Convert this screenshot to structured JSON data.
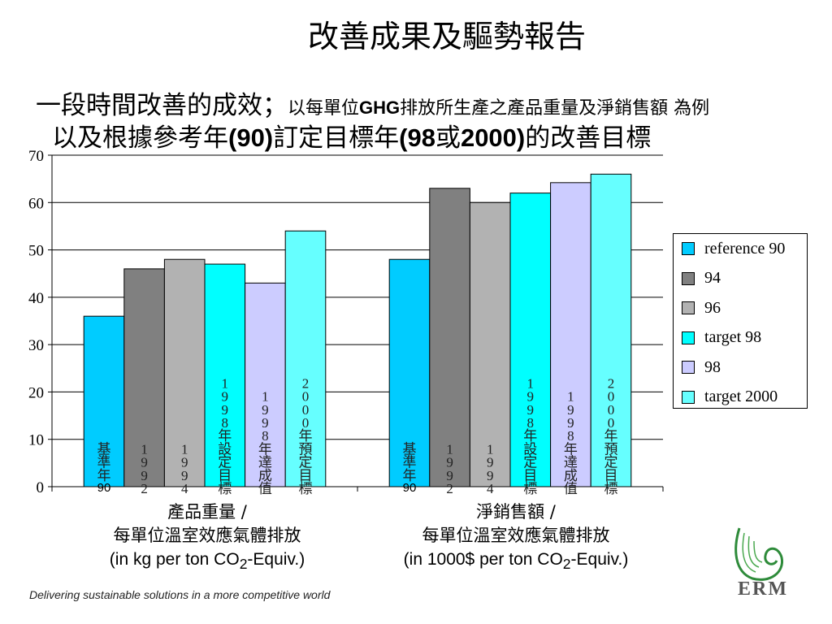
{
  "title": "改善成果及驅勢報告",
  "subtitle_line1_main": "一段時間改善的成效；",
  "subtitle_line1_small_a": "以每單位",
  "subtitle_line1_small_b": "GHG",
  "subtitle_line1_small_c": "排放所生產之產品重量及淨銷售額 為例",
  "subtitle_line2_a": "以及根據參考年",
  "subtitle_line2_b": "(90)",
  "subtitle_line2_c": "訂定目標年",
  "subtitle_line2_d": "(98",
  "subtitle_line2_e": "或",
  "subtitle_line2_f": "2000)",
  "subtitle_line2_g": "的改善目標",
  "group_labels": [
    {
      "line1": "產品重量 /",
      "line2": "每單位溫室效應氣體排放",
      "line3_pre": "(in kg per ton CO",
      "sub": "2",
      "line3_post": "-Equiv.)"
    },
    {
      "line1": "淨銷售額 /",
      "line2": "每單位溫室效應氣體排放",
      "line3_pre": "(in 1000$ per ton CO",
      "sub": "2",
      "line3_post": "-Equiv.)"
    }
  ],
  "footer": "Delivering sustainable solutions in a more competitive world",
  "logo_text": "ERM",
  "colors": {
    "reference 90": "#00ccff",
    "94": "#808080",
    "96": "#b2b2b2",
    "target 98": "#00ffff",
    "98": "#ccccff",
    "target 2000": "#66ffff"
  },
  "chart_data": {
    "type": "bar",
    "categories": [
      "產品重量",
      "淨銷售額"
    ],
    "ylim": [
      0,
      70
    ],
    "yticks": [
      0,
      10,
      20,
      30,
      40,
      50,
      60,
      70
    ],
    "legend_position": "right",
    "grid": true,
    "series": [
      {
        "name": "reference 90",
        "values": [
          36,
          48
        ],
        "bar_label": "基準年",
        "bar_label_year": "90"
      },
      {
        "name": "94",
        "values": [
          46,
          63
        ],
        "bar_label": "1992"
      },
      {
        "name": "96",
        "values": [
          48,
          60
        ],
        "bar_label": "1994"
      },
      {
        "name": "target 98",
        "values": [
          47,
          62
        ],
        "bar_label": "1998年設定目標"
      },
      {
        "name": "98",
        "values": [
          43,
          64.2
        ],
        "bar_label": "1998年達成值"
      },
      {
        "name": "target 2000",
        "values": [
          54,
          66
        ],
        "bar_label": "2000年預定目標"
      }
    ]
  }
}
